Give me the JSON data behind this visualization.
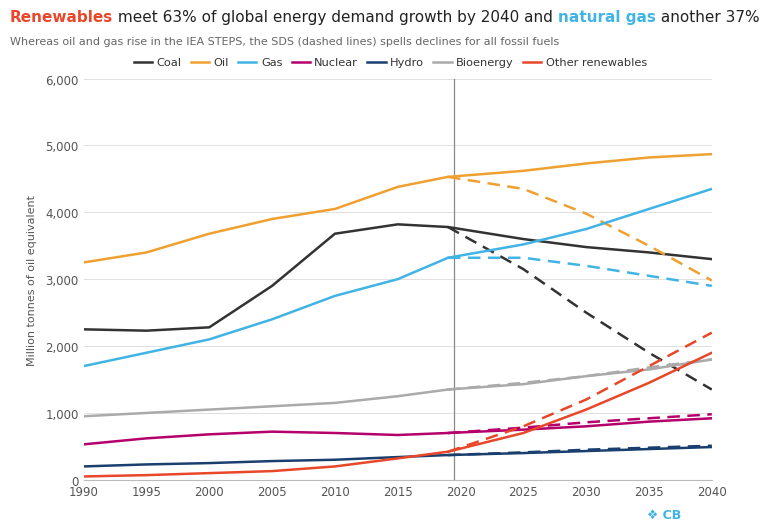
{
  "title_parts": [
    {
      "text": "Renewables",
      "color": "#e8472a",
      "bold": true
    },
    {
      "text": " meet 63% of global energy demand growth by 2040 and ",
      "color": "#222222",
      "bold": false
    },
    {
      "text": "natural gas",
      "color": "#40b4e5",
      "bold": true
    },
    {
      "text": " another 37%",
      "color": "#222222",
      "bold": false
    }
  ],
  "subtitle": "Whereas oil and gas rise in the IEA STEPS, the SDS (dashed lines) spells declines for all fossil fuels",
  "ylabel": "Million tonnes of oil equivalent",
  "years_historical": [
    1990,
    1995,
    2000,
    2005,
    2010,
    2015,
    2019
  ],
  "years_future": [
    2020,
    2025,
    2030,
    2035,
    2040
  ],
  "vertical_line_x": 2019.5,
  "series": {
    "Coal": {
      "color": "#333333",
      "historical": [
        2250,
        2230,
        2280,
        2900,
        3680,
        3820,
        3780
      ],
      "steps": [
        3600,
        3480,
        3400,
        3300
      ],
      "sds": [
        3150,
        2500,
        1900,
        1350
      ]
    },
    "Oil": {
      "color": "#f0a030",
      "historical": [
        3250,
        3400,
        3680,
        3900,
        4050,
        4380,
        4530
      ],
      "steps": [
        4620,
        4730,
        4820,
        4870
      ],
      "sds": [
        4350,
        3980,
        3500,
        2980
      ]
    },
    "Gas": {
      "color": "#40b4e5",
      "historical": [
        1700,
        1900,
        2100,
        2400,
        2750,
        3000,
        3320
      ],
      "steps": [
        3520,
        3750,
        4050,
        4350
      ],
      "sds": [
        3320,
        3200,
        3050,
        2900
      ]
    },
    "Nuclear": {
      "color": "#b5006b",
      "historical": [
        530,
        620,
        680,
        720,
        700,
        670,
        700
      ],
      "steps": [
        750,
        800,
        870,
        920
      ],
      "sds": [
        780,
        860,
        920,
        980
      ]
    },
    "Hydro": {
      "color": "#1a3f6f",
      "historical": [
        200,
        230,
        250,
        280,
        300,
        340,
        370
      ],
      "steps": [
        400,
        430,
        460,
        490
      ],
      "sds": [
        410,
        450,
        480,
        510
      ]
    },
    "Bioenergy": {
      "color": "#aaaaaa",
      "historical": [
        950,
        1000,
        1050,
        1100,
        1150,
        1250,
        1350
      ],
      "steps": [
        1430,
        1550,
        1650,
        1800
      ],
      "sds": [
        1450,
        1550,
        1680,
        1800
      ]
    },
    "Other renewables": {
      "color": "#e8472a",
      "historical": [
        50,
        70,
        100,
        130,
        200,
        320,
        420
      ],
      "steps": [
        700,
        1050,
        1450,
        1900
      ],
      "sds": [
        800,
        1200,
        1700,
        2200
      ]
    }
  },
  "ylim": [
    0,
    6000
  ],
  "yticks": [
    0,
    1000,
    2000,
    3000,
    4000,
    5000,
    6000
  ],
  "xlim": [
    1990,
    2040
  ],
  "xticks": [
    1990,
    1995,
    2000,
    2005,
    2010,
    2015,
    2020,
    2025,
    2030,
    2035,
    2040
  ],
  "background_color": "#ffffff",
  "grid_color": "#e0e0e0"
}
